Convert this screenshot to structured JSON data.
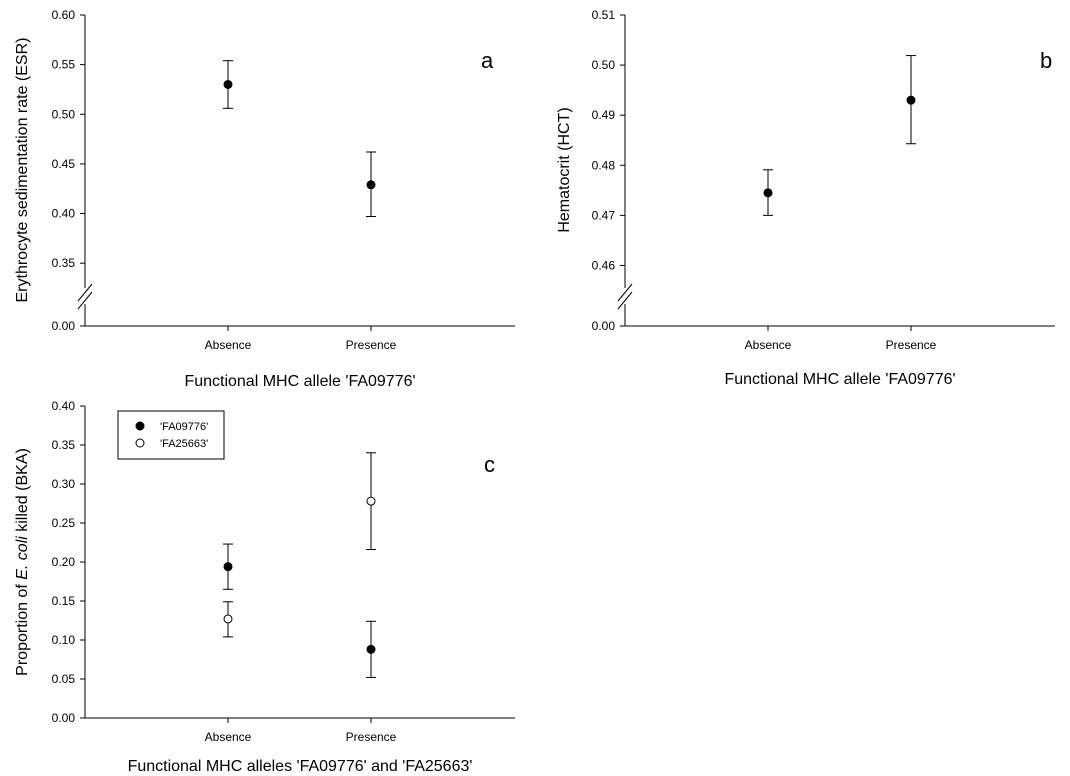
{
  "figure": {
    "background": "#ffffff",
    "ink": "#000000"
  },
  "chart_data": [
    {
      "id": "a",
      "type": "scatter",
      "panel_label": "a",
      "ylabel": "Erythrocyte sedimentation rate (ESR)",
      "xlabel": "Functional MHC allele 'FA09776'",
      "categories": [
        "Absence",
        "Presence"
      ],
      "axis_break": true,
      "ylim": [
        0.325,
        0.6
      ],
      "yticks": [
        "0.35",
        "0.40",
        "0.45",
        "0.50",
        "0.55",
        "0.60"
      ],
      "y_break_tick": "0.00",
      "grid": false,
      "series": [
        {
          "marker": "filled",
          "values": [
            0.53,
            0.429
          ],
          "err_low": [
            0.506,
            0.397
          ],
          "err_high": [
            0.554,
            0.462
          ]
        }
      ]
    },
    {
      "id": "b",
      "type": "scatter",
      "panel_label": "b",
      "ylabel": "Hematocrit (HCT)",
      "xlabel": "Functional MHC allele 'FA09776'",
      "categories": [
        "Absence",
        "Presence"
      ],
      "axis_break": true,
      "ylim": [
        0.4555,
        0.51
      ],
      "yticks": [
        "0.46",
        "0.47",
        "0.48",
        "0.49",
        "0.50",
        "0.51"
      ],
      "y_break_tick": "0.00",
      "grid": false,
      "series": [
        {
          "marker": "filled",
          "values": [
            0.4745,
            0.493
          ],
          "err_low": [
            0.47,
            0.4843
          ],
          "err_high": [
            0.4791,
            0.5019
          ]
        }
      ]
    },
    {
      "id": "c",
      "type": "scatter",
      "panel_label": "c",
      "ylabel_parts": [
        "Proportion of ",
        "E. coli",
        " killed (BKA)"
      ],
      "xlabel": "Functional MHC alleles 'FA09776' and 'FA25663'",
      "categories": [
        "Absence",
        "Presence"
      ],
      "axis_break": false,
      "ylim": [
        0,
        0.4
      ],
      "yticks": [
        "0.00",
        "0.05",
        "0.10",
        "0.15",
        "0.20",
        "0.25",
        "0.30",
        "0.35",
        "0.40"
      ],
      "grid": false,
      "legend_position": "top-left",
      "series": [
        {
          "name": "'FA09776'",
          "marker": "filled",
          "values": [
            0.194,
            0.088
          ],
          "err_low": [
            0.165,
            0.052
          ],
          "err_high": [
            0.223,
            0.124
          ]
        },
        {
          "name": "'FA25663'",
          "marker": "open",
          "values": [
            0.127,
            0.278
          ],
          "err_low": [
            0.104,
            0.216
          ],
          "err_high": [
            0.149,
            0.34
          ]
        }
      ]
    }
  ]
}
